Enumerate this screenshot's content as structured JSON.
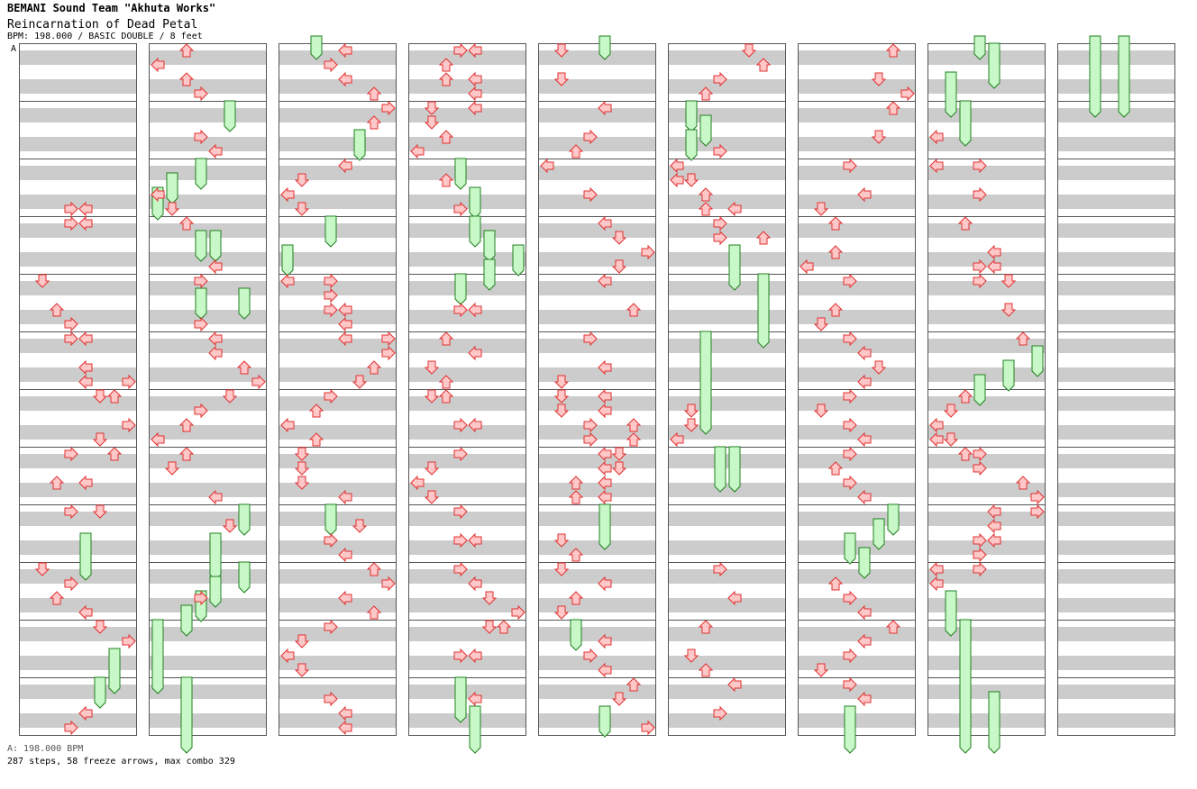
{
  "header": {
    "artist": "BEMANI Sound Team \"Akhuta Works\"",
    "title": "Reincarnation of Dead Petal",
    "info": "BPM: 198.000 / BASIC DOUBLE / 8 feet",
    "bpm_marker": "A"
  },
  "footer": {
    "bpm_line": "A: 198.000 BPM",
    "stats": "287 steps, 58 freeze arrows, max combo 329"
  },
  "colors": {
    "stripe": "#cccccc",
    "border": "#555555",
    "arrow_fill": "#ffc8c8",
    "arrow_stroke": "#e03030",
    "freeze_fill": "#c8f8c8",
    "freeze_stroke": "#208020"
  }
}
